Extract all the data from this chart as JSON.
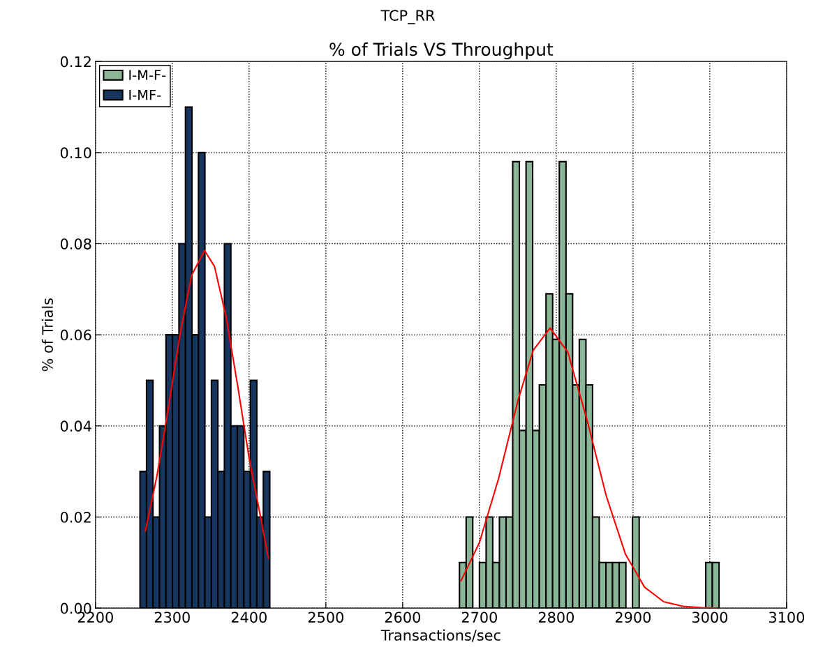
{
  "chart_data": {
    "type": "histogram",
    "title": "% of Trials VS Throughput",
    "subtitle": "TCP_RR",
    "xlabel": "Transactions/sec",
    "ylabel": "% of Trials",
    "xlim": [
      2200,
      3100
    ],
    "xticks": [
      2200,
      2300,
      2400,
      2500,
      2600,
      2700,
      2800,
      2900,
      3000,
      3100
    ],
    "ylim": [
      0,
      0.12
    ],
    "yticks": [
      {
        "value": 0,
        "label": "0.00"
      },
      {
        "value": 0.02,
        "label": "0.02"
      },
      {
        "value": 0.04,
        "label": "0.04"
      },
      {
        "value": 0.06,
        "label": "0.06"
      },
      {
        "value": 0.08,
        "label": "0.08"
      },
      {
        "value": 0.1,
        "label": "0.10"
      },
      {
        "value": 0.12,
        "label": "0.12"
      }
    ],
    "grid": true,
    "legend": "top left",
    "series": [
      {
        "name": "I-M-F-",
        "color": "#8ab596",
        "bins": [
          2674,
          2682.7,
          2691.3,
          2700,
          2708.7,
          2717.3,
          2726,
          2734.7,
          2743.3,
          2752,
          2760.7,
          2769.3,
          2778,
          2786.7,
          2795.3,
          2804,
          2812.7,
          2821.3,
          2830,
          2838.7,
          2847.3,
          2856,
          2864.7,
          2873.3,
          2882,
          2890.7,
          2899.3,
          2908,
          2916.7,
          2925.3,
          2934,
          2942.7,
          2951.3,
          2960,
          2968.7,
          2977.3,
          2986,
          2994.7,
          3003.3,
          3012
        ],
        "values": [
          0.01,
          0.02,
          0,
          0.01,
          0.02,
          0.01,
          0.02,
          0.02,
          0.098,
          0.039,
          0.098,
          0.039,
          0.049,
          0.069,
          0.059,
          0.098,
          0.069,
          0.049,
          0.059,
          0.049,
          0.02,
          0.01,
          0.01,
          0.01,
          0.01,
          0,
          0.02,
          0,
          0,
          0,
          0,
          0,
          0,
          0,
          0,
          0,
          0,
          0.01,
          0.01
        ]
      },
      {
        "name": "I-MF-",
        "color": "#17365f",
        "bins": [
          2258,
          2266.5,
          2274.9,
          2283.4,
          2291.8,
          2300.3,
          2308.7,
          2317.2,
          2325.6,
          2334.1,
          2342.5,
          2351,
          2359.4,
          2367.9,
          2376.3,
          2384.8,
          2393.2,
          2401.7,
          2410.1,
          2418.6,
          2427
        ],
        "values": [
          0.03,
          0.05,
          0.02,
          0.04,
          0.06,
          0.06,
          0.08,
          0.11,
          0.06,
          0.1,
          0.02,
          0.05,
          0.03,
          0.08,
          0.04,
          0.04,
          0.03,
          0.05,
          0.02,
          0.03
        ]
      },
      {
        "type": "line",
        "color": "#ff0000",
        "x": [
          2265,
          2280,
          2295,
          2310,
          2325,
          2342,
          2355,
          2370,
          2385,
          2400,
          2415,
          2425
        ],
        "values": [
          0.017,
          0.029,
          0.044,
          0.06,
          0.073,
          0.0785,
          0.075,
          0.064,
          0.049,
          0.033,
          0.02,
          0.011
        ]
      },
      {
        "type": "line",
        "color": "#ff0000",
        "x": [
          2676,
          2700,
          2725,
          2750,
          2770,
          2792,
          2815,
          2840,
          2865,
          2890,
          2915,
          2940,
          2965,
          2990,
          3010
        ],
        "values": [
          0.006,
          0.0144,
          0.0285,
          0.0455,
          0.0566,
          0.0615,
          0.0562,
          0.0414,
          0.0247,
          0.0119,
          0.0046,
          0.0014,
          0.0004,
          0.0001,
          0
        ]
      }
    ]
  }
}
